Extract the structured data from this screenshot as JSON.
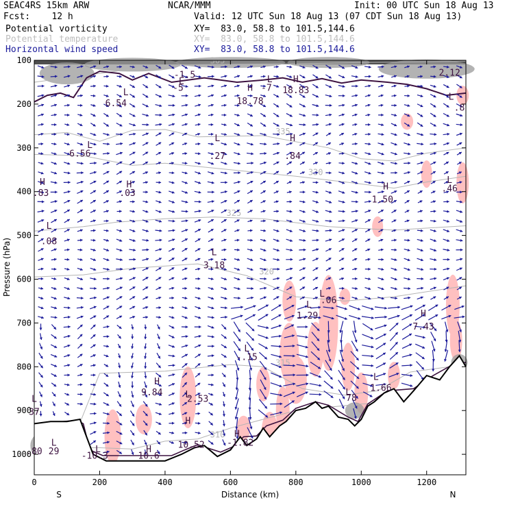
{
  "header": {
    "model": "SEAC4RS 15km ARW",
    "org": "NCAR/MMM",
    "init": "Init: 00 UTC Sun 18 Aug 13",
    "fcst": "Fcst:    12 h",
    "valid": "Valid: 12 UTC Sun 18 Aug 13 (07 CDT Sun 18 Aug 13)",
    "fields": [
      {
        "name": "Potential vorticity",
        "xy": "XY=  83.0, 58.8 to 101.5,144.6",
        "color": "#000000"
      },
      {
        "name": "Potential temperature",
        "xy": "XY=  83.0, 58.8 to 101.5,144.6",
        "color": "#bdbdbd"
      },
      {
        "name": "Horizontal wind speed",
        "xy": "XY=  83.0, 58.8 to 101.5,144.6",
        "color": "#1a1a9a"
      }
    ]
  },
  "colors": {
    "pv_line": "#3d1240",
    "theta_line": "#b4b4b4",
    "wind_arrow": "#1a1a9a",
    "terrain_line": "#000000",
    "shade_pink": "#ffc0c0",
    "shade_gray": "#9a9a9a",
    "shade_dark": "#505050"
  },
  "chart_data": {
    "type": "cross-section",
    "xlabel": "Distance (km)",
    "ylabel": "Pressure (hPa)",
    "xlim": [
      0,
      1320
    ],
    "ylim": [
      1050,
      100
    ],
    "x_ticks": [
      0,
      200,
      400,
      600,
      800,
      1000,
      1200
    ],
    "y_ticks": [
      100,
      200,
      300,
      400,
      500,
      600,
      700,
      800,
      900,
      1000
    ],
    "end_labels": {
      "left": "S",
      "right": "N"
    },
    "theta_contours": [
      {
        "label": "305",
        "points": [
          [
            0,
            150
          ],
          [
            100,
            140
          ],
          [
            300,
            120
          ],
          [
            500,
            110
          ],
          [
            800,
            108
          ],
          [
            1000,
            105
          ],
          [
            1320,
            102
          ]
        ]
      },
      {
        "label": "335",
        "points": [
          [
            0,
            270
          ],
          [
            100,
            265
          ],
          [
            200,
            285
          ],
          [
            300,
            260
          ],
          [
            400,
            258
          ],
          [
            500,
            275
          ],
          [
            700,
            272
          ],
          [
            900,
            300
          ],
          [
            1000,
            325
          ],
          [
            1100,
            330
          ],
          [
            1200,
            312
          ],
          [
            1320,
            300
          ]
        ]
      },
      {
        "label": "330",
        "points": [
          [
            0,
            315
          ],
          [
            150,
            318
          ],
          [
            300,
            340
          ],
          [
            400,
            335
          ],
          [
            600,
            350
          ],
          [
            800,
            365
          ],
          [
            950,
            378
          ],
          [
            1100,
            392
          ],
          [
            1200,
            378
          ],
          [
            1320,
            365
          ]
        ]
      },
      {
        "label": "325",
        "points": [
          [
            0,
            490
          ],
          [
            150,
            480
          ],
          [
            250,
            470
          ],
          [
            400,
            462
          ],
          [
            550,
            458
          ],
          [
            700,
            462
          ],
          [
            900,
            480
          ],
          [
            1100,
            488
          ],
          [
            1320,
            478
          ]
        ]
      },
      {
        "label": "320",
        "points": [
          [
            0,
            595
          ],
          [
            150,
            590
          ],
          [
            300,
            575
          ],
          [
            500,
            565
          ],
          [
            650,
            592
          ],
          [
            800,
            640
          ],
          [
            950,
            650
          ],
          [
            1100,
            640
          ],
          [
            1320,
            615
          ]
        ]
      },
      {
        "label": "315",
        "points": [
          [
            0,
            975
          ],
          [
            120,
            965
          ],
          [
            200,
            815
          ],
          [
            400,
            810
          ],
          [
            600,
            795
          ],
          [
            700,
            800
          ],
          [
            820,
            850
          ],
          [
            950,
            865
          ],
          [
            1050,
            855
          ],
          [
            1150,
            812
          ],
          [
            1320,
            795
          ]
        ]
      },
      {
        "label": "310",
        "points": [
          [
            0,
            995
          ],
          [
            120,
            985
          ],
          [
            200,
            985
          ],
          [
            300,
            988
          ],
          [
            400,
            970
          ],
          [
            500,
            965
          ],
          [
            600,
            940
          ],
          [
            800,
            900
          ],
          [
            1000,
            885
          ],
          [
            1320,
            880
          ]
        ]
      }
    ],
    "terrain": [
      [
        0,
        930
      ],
      [
        50,
        925
      ],
      [
        100,
        925
      ],
      [
        140,
        920
      ],
      [
        180,
        1000
      ],
      [
        220,
        1015
      ],
      [
        300,
        1015
      ],
      [
        400,
        1015
      ],
      [
        450,
        1000
      ],
      [
        490,
        985
      ],
      [
        520,
        980
      ],
      [
        560,
        1005
      ],
      [
        600,
        990
      ],
      [
        630,
        960
      ],
      [
        650,
        980
      ],
      [
        680,
        965
      ],
      [
        700,
        940
      ],
      [
        720,
        960
      ],
      [
        750,
        935
      ],
      [
        770,
        925
      ],
      [
        800,
        900
      ],
      [
        830,
        895
      ],
      [
        860,
        880
      ],
      [
        880,
        895
      ],
      [
        900,
        890
      ],
      [
        930,
        915
      ],
      [
        960,
        920
      ],
      [
        980,
        935
      ],
      [
        1000,
        920
      ],
      [
        1020,
        890
      ],
      [
        1040,
        880
      ],
      [
        1070,
        860
      ],
      [
        1100,
        850
      ],
      [
        1130,
        880
      ],
      [
        1160,
        855
      ],
      [
        1200,
        820
      ],
      [
        1240,
        830
      ],
      [
        1270,
        800
      ],
      [
        1300,
        775
      ],
      [
        1320,
        800
      ]
    ],
    "pv_labels": [
      {
        "text": "L",
        "x": 280,
        "y": 180
      },
      {
        "text": "6.54",
        "x": 250,
        "y": 205
      },
      {
        "text": "L",
        "x": 170,
        "y": 300
      },
      {
        "text": "6.56",
        "x": 140,
        "y": 320
      },
      {
        "text": "H",
        "x": 25,
        "y": 385
      },
      {
        "text": ".83",
        "x": 20,
        "y": 410
      },
      {
        "text": "H",
        "x": 290,
        "y": 390
      },
      {
        "text": ".03",
        "x": 285,
        "y": 410
      },
      {
        "text": "L",
        "x": 45,
        "y": 485
      },
      {
        "text": ".08",
        "x": 45,
        "y": 520
      },
      {
        "text": "L",
        "x": 550,
        "y": 545
      },
      {
        "text": "3.18",
        "x": 550,
        "y": 575
      },
      {
        "text": "L",
        "x": 560,
        "y": 285
      },
      {
        "text": ".27",
        "x": 560,
        "y": 325
      },
      {
        "text": "H",
        "x": 790,
        "y": 285
      },
      {
        "text": ".84",
        "x": 790,
        "y": 325
      },
      {
        "text": "H",
        "x": 1075,
        "y": 395
      },
      {
        "text": "1.50",
        "x": 1065,
        "y": 425
      },
      {
        "text": "L",
        "x": 1270,
        "y": 380
      },
      {
        "text": ".46",
        "x": 1270,
        "y": 400
      },
      {
        "text": "H",
        "x": 660,
        "y": 170
      },
      {
        "text": "18.78",
        "x": 660,
        "y": 200
      },
      {
        "text": "H",
        "x": 800,
        "y": 150
      },
      {
        "text": "18.83",
        "x": 800,
        "y": 175
      },
      {
        "text": "L",
        "x": 450,
        "y": 155
      },
      {
        "text": "-5",
        "x": 440,
        "y": 170
      },
      {
        "text": "L",
        "x": 720,
        "y": 150
      },
      {
        "text": "-7",
        "x": 710,
        "y": 170
      },
      {
        "text": "L",
        "x": 1275,
        "y": 190
      },
      {
        "text": ".8",
        "x": 1300,
        "y": 215
      },
      {
        "text": "L",
        "x": 840,
        "y": 665
      },
      {
        "text": "1.29",
        "x": 835,
        "y": 690
      },
      {
        "text": "L",
        "x": 880,
        "y": 640
      },
      {
        "text": ".06",
        "x": 900,
        "y": 655
      },
      {
        "text": "H",
        "x": 1190,
        "y": 685
      },
      {
        "text": "7.43",
        "x": 1190,
        "y": 715
      },
      {
        "text": "L",
        "x": 650,
        "y": 765
      },
      {
        "text": "-.15",
        "x": 650,
        "y": 785
      },
      {
        "text": "H",
        "x": 375,
        "y": 840
      },
      {
        "text": "9.84",
        "x": 360,
        "y": 865
      },
      {
        "text": "L",
        "x": 1045,
        "y": 830
      },
      {
        "text": "1.66",
        "x": 1060,
        "y": 855
      },
      {
        "text": "L",
        "x": 470,
        "y": 870
      },
      {
        "text": "2.53",
        "x": 500,
        "y": 880
      },
      {
        "text": "L",
        "x": 960,
        "y": 865
      },
      {
        "text": "78",
        "x": 970,
        "y": 878
      },
      {
        "text": "H",
        "x": 470,
        "y": 930
      },
      {
        "text": "10.52",
        "x": 480,
        "y": 985
      },
      {
        "text": "H",
        "x": 620,
        "y": 960
      },
      {
        "text": "-1.82",
        "x": 630,
        "y": 980
      },
      {
        "text": "H",
        "x": 350,
        "y": 995
      },
      {
        "text": "10.6",
        "x": 350,
        "y": 1010
      },
      {
        "text": "L",
        "x": 195,
        "y": 995
      },
      {
        "text": "-10.3",
        "x": 185,
        "y": 1010
      },
      {
        "text": "L",
        "x": 60,
        "y": 980
      },
      {
        "text": "29",
        "x": 60,
        "y": 1000
      },
      {
        "text": "L",
        "x": 0,
        "y": 880
      },
      {
        "text": "37",
        "x": 0,
        "y": 910
      },
      {
        "text": ".80",
        "x": 0,
        "y": 1000
      },
      {
        "text": "-1.5",
        "x": 460,
        "y": 140
      },
      {
        "text": "2.12",
        "x": 1270,
        "y": 135
      }
    ]
  }
}
